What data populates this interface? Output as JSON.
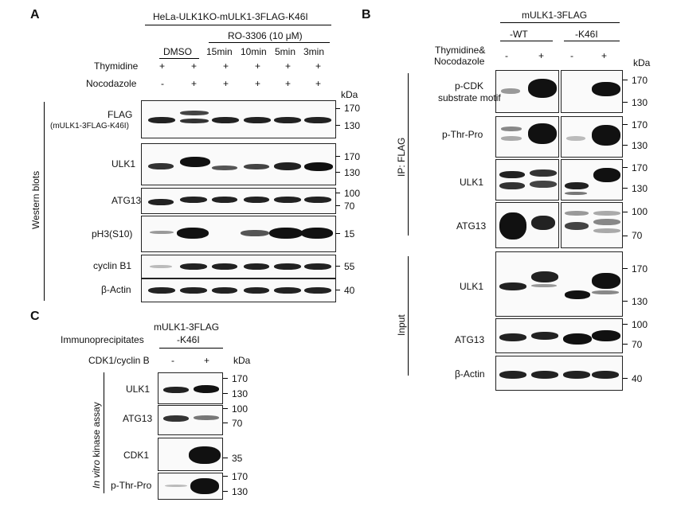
{
  "panelA": {
    "letter": "A",
    "header": "HeLa-ULK1KO-mULK1-3FLAG-K46I",
    "ro_label": "RO-3306 (10 μM)",
    "dmso": "DMSO",
    "times": [
      "15min",
      "10min",
      "5min",
      "3min"
    ],
    "row_labels": [
      "Thymidine",
      "Nocodazole"
    ],
    "thymidine": [
      "+",
      "+",
      "+",
      "+",
      "+",
      "+"
    ],
    "nocodazole": [
      "-",
      "+",
      "+",
      "+",
      "+",
      "+"
    ],
    "kda": "kDa",
    "side_label": "Western blots",
    "blots": [
      {
        "name": "FLAG",
        "sub": "(mULK1-3FLAG-K46I)",
        "markers": [
          "170",
          "130"
        ]
      },
      {
        "name": "ULK1",
        "markers": [
          "170",
          "130"
        ]
      },
      {
        "name": "ATG13",
        "markers": [
          "100",
          "70"
        ]
      },
      {
        "name": "pH3(S10)",
        "markers": [
          "15"
        ]
      },
      {
        "name": "cyclin B1",
        "markers": [
          "55"
        ]
      },
      {
        "name": "β-Actin",
        "markers": [
          "40"
        ]
      }
    ]
  },
  "panelB": {
    "letter": "B",
    "header": "mULK1-3FLAG",
    "wt": "-WT",
    "k46i": "-K46I",
    "treat": [
      "Thymidine&",
      "Nocodazole"
    ],
    "signs": [
      "-",
      "+",
      "-",
      "+"
    ],
    "kda": "kDa",
    "ip_label": "IP: FLAG",
    "input_label": "Input",
    "blots": [
      {
        "name": "p-CDK",
        "sub": "substrate motif",
        "markers": [
          "170",
          "130"
        ]
      },
      {
        "name": "p-Thr-Pro",
        "markers": [
          "170",
          "130"
        ]
      },
      {
        "name": "ULK1",
        "markers": [
          "170",
          "130"
        ]
      },
      {
        "name": "ATG13",
        "markers": [
          "100",
          "70"
        ]
      },
      {
        "name": "ULK1",
        "markers": [
          "170",
          "130"
        ]
      },
      {
        "name": "ATG13",
        "markers": [
          "100",
          "70"
        ]
      },
      {
        "name": "β-Actin",
        "markers": [
          "40"
        ]
      }
    ]
  },
  "panelC": {
    "letter": "C",
    "header1": "mULK1-3FLAG",
    "header2": "-K46I",
    "immuno": "Immunoprecipitates",
    "cdk_row": "CDK1/cyclin B",
    "signs": [
      "-",
      "+"
    ],
    "kda": "kDa",
    "side_italic": "In vitro",
    "side_rest": " kinase assay",
    "blots": [
      {
        "name": "ULK1",
        "markers": [
          "170",
          "130"
        ]
      },
      {
        "name": "ATG13",
        "markers": [
          "100",
          "70"
        ]
      },
      {
        "name": "CDK1",
        "markers": [
          "35"
        ]
      },
      {
        "name": "p-Thr-Pro",
        "markers": [
          "170",
          "130"
        ]
      }
    ]
  }
}
